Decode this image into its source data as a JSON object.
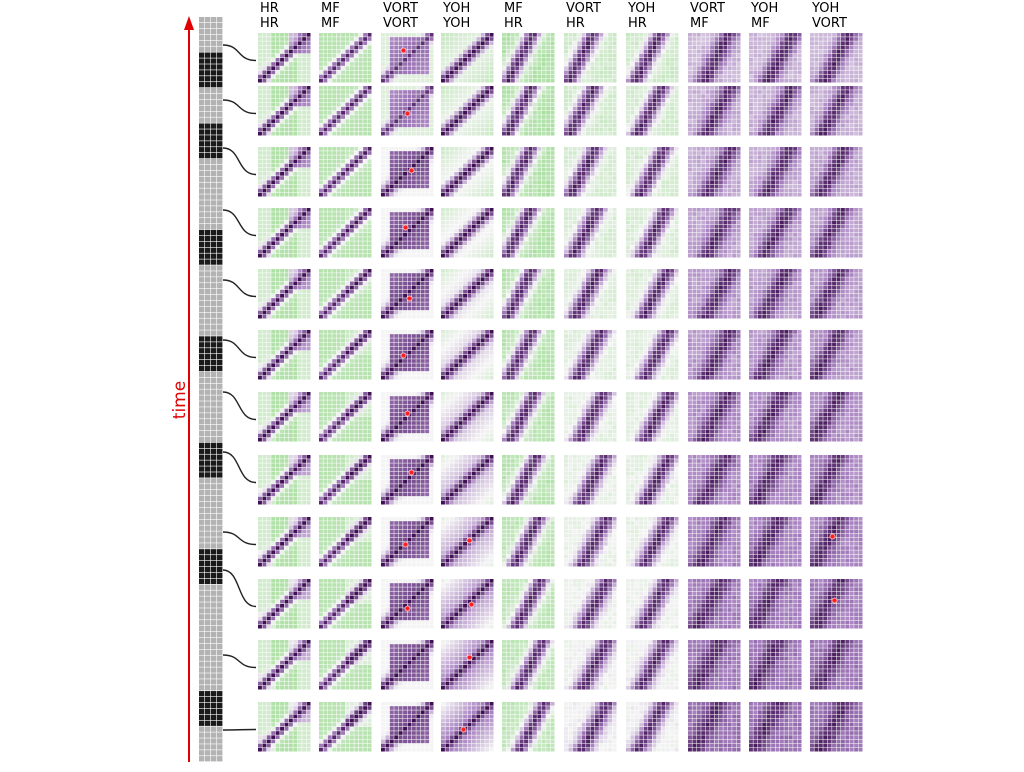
{
  "axis": {
    "time_label": "time",
    "arrow_color": "#e00000"
  },
  "column_headers": [
    {
      "top": "HR",
      "bottom": "HR"
    },
    {
      "top": "MF",
      "bottom": "MF"
    },
    {
      "top": "VORT",
      "bottom": "VORT"
    },
    {
      "top": "YOH",
      "bottom": "YOH"
    },
    {
      "top": "MF",
      "bottom": "HR"
    },
    {
      "top": "VORT",
      "bottom": "HR"
    },
    {
      "top": "YOH",
      "bottom": "HR"
    },
    {
      "top": "VORT",
      "bottom": "MF"
    },
    {
      "top": "YOH",
      "bottom": "MF"
    },
    {
      "top": "YOH",
      "bottom": "VORT"
    }
  ],
  "colors": {
    "high": "#3f1152",
    "mid_high": "#a680bf",
    "neutral": "#f4f4f4",
    "mid_low": "#a9dfa0",
    "low": "#1f7a2c",
    "marker": "#ff2020",
    "bar_dark": "#1a1a1a",
    "bar_light": "#b3b3b3"
  },
  "timeline_bar_pattern": [
    "light",
    "dark",
    "light",
    "dark",
    "light",
    "light",
    "dark",
    "light",
    "light",
    "dark",
    "light",
    "light",
    "dark",
    "light",
    "light",
    "dark",
    "light",
    "light",
    "light",
    "dark",
    "light"
  ],
  "markers": [
    {
      "row": 0,
      "col": 2
    },
    {
      "row": 1,
      "col": 2
    },
    {
      "row": 2,
      "col": 2
    },
    {
      "row": 3,
      "col": 2
    },
    {
      "row": 4,
      "col": 2
    },
    {
      "row": 5,
      "col": 2
    },
    {
      "row": 6,
      "col": 2
    },
    {
      "row": 7,
      "col": 2
    },
    {
      "row": 8,
      "col": 2
    },
    {
      "row": 8,
      "col": 3
    },
    {
      "row": 8,
      "col": 9
    },
    {
      "row": 9,
      "col": 2
    },
    {
      "row": 9,
      "col": 3
    },
    {
      "row": 9,
      "col": 9
    },
    {
      "row": 10,
      "col": 3
    },
    {
      "row": 11,
      "col": 3
    }
  ]
}
